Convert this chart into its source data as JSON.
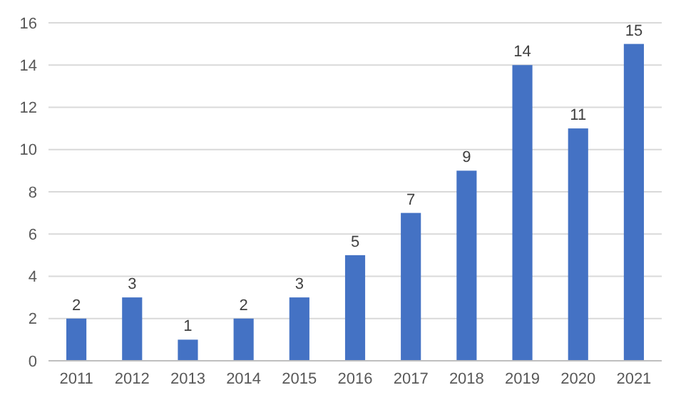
{
  "chart_data": {
    "type": "bar",
    "categories": [
      "2011",
      "2012",
      "2013",
      "2014",
      "2015",
      "2016",
      "2017",
      "2018",
      "2019",
      "2020",
      "2021"
    ],
    "values": [
      2,
      3,
      1,
      2,
      3,
      5,
      7,
      9,
      14,
      11,
      15
    ],
    "color": "#4472c4",
    "ylim": [
      0,
      16
    ],
    "yticks": [
      0,
      2,
      4,
      6,
      8,
      10,
      12,
      14,
      16
    ],
    "grid": "y",
    "data_labels": true
  }
}
